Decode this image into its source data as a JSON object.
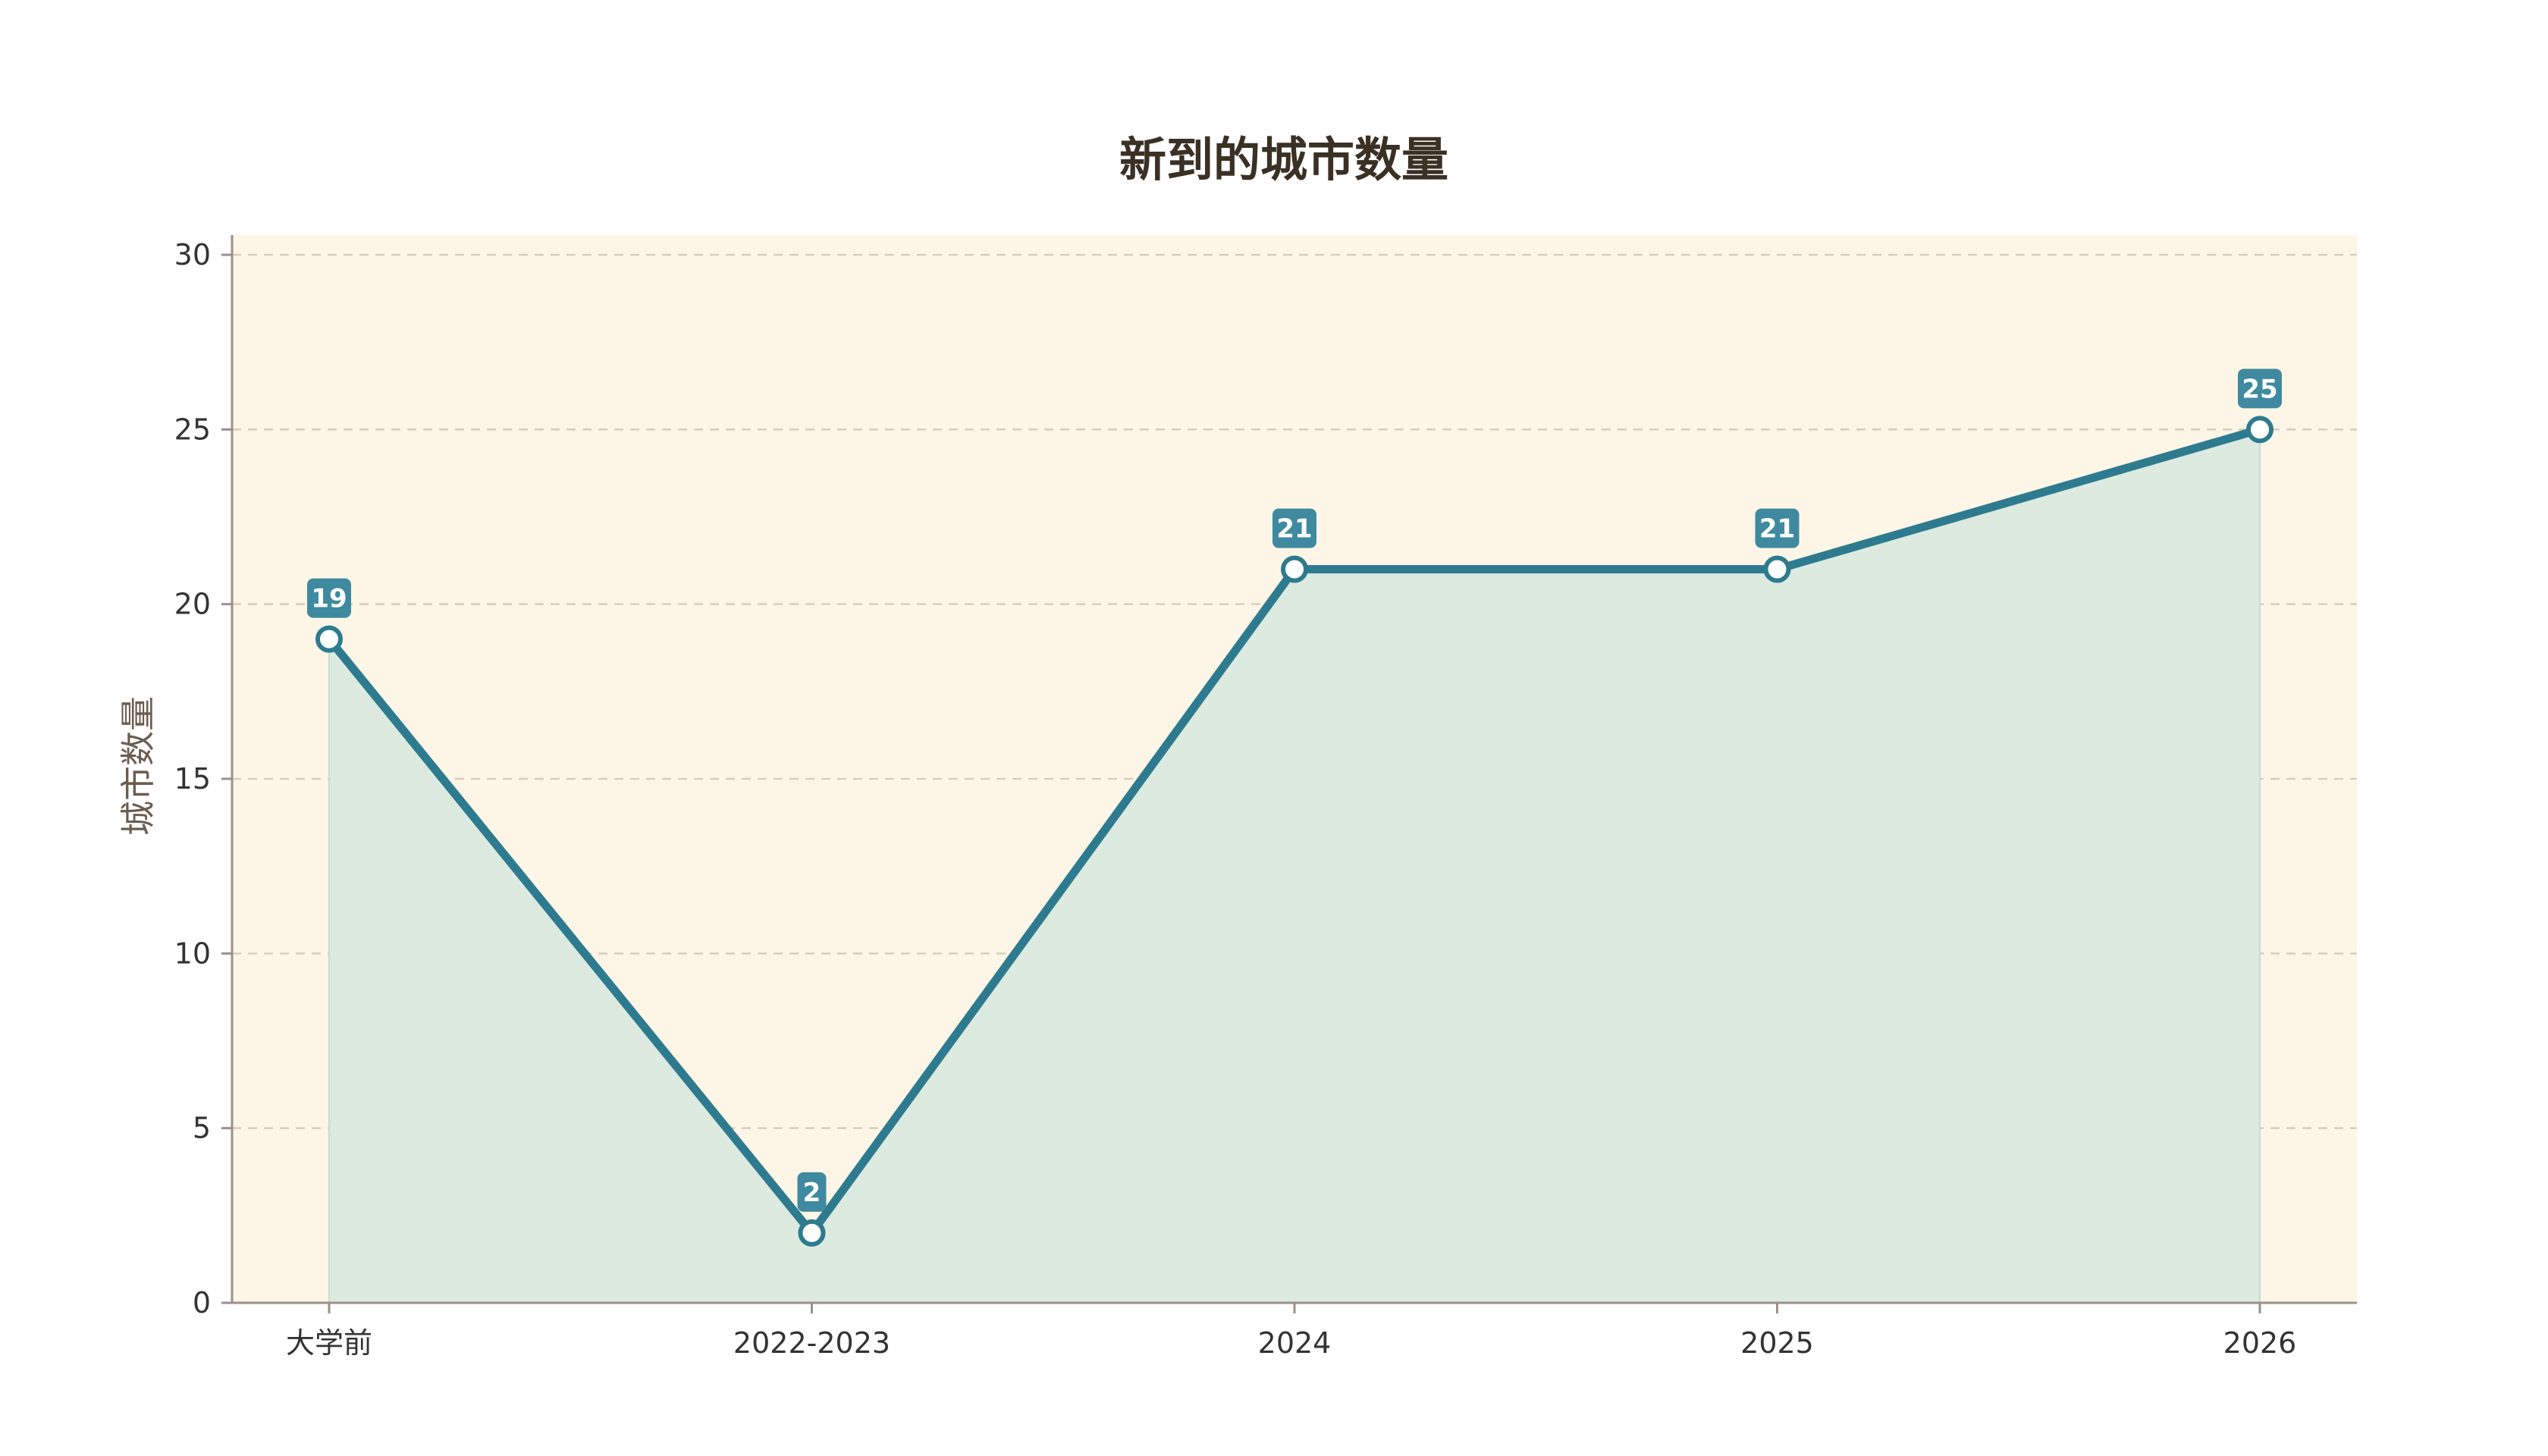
{
  "chart_data": {
    "type": "area",
    "title": "新到的城市数量",
    "xlabel": "",
    "ylabel": "城市数量",
    "categories": [
      "大学前",
      "2022-2023",
      "2024",
      "2025",
      "2026"
    ],
    "series": [
      {
        "values": [
          19,
          2,
          21,
          21,
          25
        ]
      }
    ],
    "ylim": [
      0,
      30
    ],
    "yticks": [
      0,
      5,
      10,
      15,
      20,
      25,
      30
    ],
    "grid": true,
    "data_labels": true,
    "colors": {
      "line": "#2e7b8f",
      "area_fill": "#dceae0",
      "plot_background": "#fdf6e6",
      "label_box": "#3f8aa0",
      "grid": "#d7cdbf",
      "axis": "#9c9088"
    }
  }
}
